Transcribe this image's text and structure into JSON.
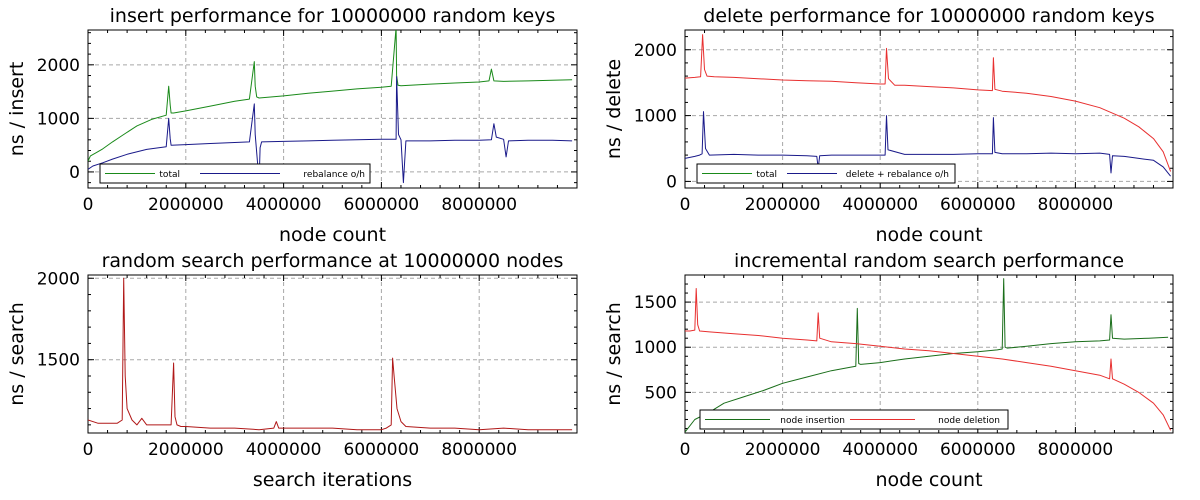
{
  "chart_data": [
    {
      "type": "line",
      "title": "insert performance for 10000000 random keys",
      "xlabel": "node count",
      "ylabel": "ns / insert",
      "xlim": [
        0,
        10000000
      ],
      "ylim": [
        -300,
        2650
      ],
      "xticks": [
        0,
        2000000,
        4000000,
        6000000,
        8000000
      ],
      "xtick_labels": [
        "0",
        "2000000",
        "4000000",
        "6000000",
        "8000000"
      ],
      "yticks": [
        0,
        1000,
        2000
      ],
      "ytick_labels": [
        "0",
        "1000",
        "2000"
      ],
      "grid": true,
      "legend_position": "bottom-left",
      "series": [
        {
          "name": "total",
          "color": "#1a8a1a",
          "x": [
            0,
            50000,
            150000,
            300000,
            500000,
            700000,
            1000000,
            1300000,
            1600000,
            1650000,
            1680000,
            1700000,
            1750000,
            2000000,
            2500000,
            3000000,
            3300000,
            3400000,
            3420000,
            3450000,
            3500000,
            4000000,
            4500000,
            5000000,
            5500000,
            6000000,
            6200000,
            6300000,
            6310000,
            6340000,
            6400000,
            7000000,
            7500000,
            8000000,
            8200000,
            8250000,
            8300000,
            8500000,
            9000000,
            9500000,
            9900000
          ],
          "y": [
            200,
            300,
            350,
            430,
            560,
            680,
            860,
            980,
            1060,
            1600,
            1250,
            1100,
            1100,
            1140,
            1230,
            1320,
            1360,
            2060,
            1600,
            1400,
            1380,
            1420,
            1470,
            1510,
            1550,
            1580,
            1600,
            2700,
            1800,
            1620,
            1610,
            1640,
            1660,
            1680,
            1700,
            1920,
            1700,
            1690,
            1700,
            1710,
            1720
          ]
        },
        {
          "name": "rebalance o/h",
          "color": "#1a1a8a",
          "x": [
            0,
            100000,
            300000,
            500000,
            800000,
            1200000,
            1600000,
            1650000,
            1680000,
            1700000,
            2000000,
            2500000,
            3000000,
            3300000,
            3400000,
            3420000,
            3500000,
            3520000,
            3550000,
            4000000,
            4500000,
            5000000,
            5500000,
            6000000,
            6300000,
            6310000,
            6350000,
            6400000,
            6450000,
            6500000,
            7000000,
            7500000,
            8000000,
            8250000,
            8300000,
            8350000,
            8500000,
            8550000,
            8600000,
            9000000,
            9500000,
            9900000
          ],
          "y": [
            50,
            110,
            170,
            240,
            330,
            420,
            470,
            1000,
            620,
            500,
            510,
            530,
            550,
            560,
            1270,
            700,
            -180,
            450,
            560,
            570,
            580,
            590,
            600,
            610,
            610,
            1780,
            700,
            600,
            -200,
            580,
            580,
            590,
            590,
            600,
            900,
            650,
            610,
            280,
            580,
            590,
            590,
            580
          ]
        }
      ]
    },
    {
      "type": "line",
      "title": "delete performance for 10000000 random keys",
      "xlabel": "node count",
      "ylabel": "ns / delete",
      "xlim": [
        0,
        10000000
      ],
      "ylim": [
        -100,
        2300
      ],
      "xticks": [
        0,
        2000000,
        4000000,
        6000000,
        8000000
      ],
      "xtick_labels": [
        "0",
        "2000000",
        "4000000",
        "6000000",
        "8000000"
      ],
      "yticks": [
        0,
        1000,
        2000
      ],
      "ytick_labels": [
        "0",
        "1000",
        "2000"
      ],
      "grid": true,
      "legend_position": "bottom-left",
      "series": [
        {
          "name": "total",
          "color": "#1a8a1a",
          "x": [],
          "y": []
        },
        {
          "name": "delete + rebalance o/h",
          "color": "#1a1a8a",
          "x": [
            0,
            200000,
            300000,
            350000,
            380000,
            420000,
            500000,
            1000000,
            1500000,
            2000000,
            2500000,
            2700000,
            2730000,
            2760000,
            3000000,
            3500000,
            4000000,
            4100000,
            4130000,
            4160000,
            4500000,
            5000000,
            5500000,
            6000000,
            6300000,
            6320000,
            6350000,
            6500000,
            7000000,
            7500000,
            8000000,
            8500000,
            8700000,
            8730000,
            8760000,
            9000000,
            9300000,
            9600000,
            9800000,
            9950000
          ],
          "y": [
            350,
            380,
            400,
            420,
            1060,
            500,
            400,
            410,
            400,
            400,
            390,
            380,
            200,
            390,
            400,
            400,
            400,
            400,
            1000,
            480,
            410,
            410,
            410,
            420,
            420,
            970,
            440,
            420,
            420,
            430,
            420,
            430,
            410,
            130,
            390,
            380,
            350,
            320,
            220,
            80
          ]
        },
        {
          "name": "",
          "color": "#e83030",
          "x": [
            0,
            200000,
            320000,
            360000,
            400000,
            450000,
            600000,
            1000000,
            1500000,
            2000000,
            2500000,
            3000000,
            3500000,
            4000000,
            4100000,
            4130000,
            4170000,
            4300000,
            4500000,
            5000000,
            5500000,
            6000000,
            6300000,
            6320000,
            6350000,
            6500000,
            7000000,
            7500000,
            8000000,
            8500000,
            9000000,
            9300000,
            9600000,
            9800000,
            9950000
          ],
          "y": [
            1570,
            1580,
            1590,
            2230,
            1700,
            1600,
            1590,
            1580,
            1560,
            1540,
            1530,
            1520,
            1500,
            1480,
            1480,
            2020,
            1560,
            1460,
            1460,
            1440,
            1420,
            1390,
            1380,
            1880,
            1400,
            1370,
            1340,
            1290,
            1220,
            1120,
            960,
            830,
            650,
            450,
            150
          ]
        }
      ]
    },
    {
      "type": "line",
      "title": "random search performance at 10000000 nodes",
      "xlabel": "search iterations",
      "ylabel": "ns / search",
      "xlim": [
        0,
        10000000
      ],
      "ylim": [
        1050,
        2020
      ],
      "xticks": [
        0,
        2000000,
        4000000,
        6000000,
        8000000
      ],
      "xtick_labels": [
        "0",
        "2000000",
        "4000000",
        "6000000",
        "8000000"
      ],
      "yticks": [
        1500,
        2000
      ],
      "ytick_labels": [
        "1500",
        "2000"
      ],
      "grid": true,
      "series": [
        {
          "name": "",
          "color": "#b01818",
          "x": [
            0,
            200000,
            400000,
            600000,
            700000,
            730000,
            760000,
            800000,
            900000,
            1000000,
            1100000,
            1200000,
            1500000,
            1700000,
            1750000,
            1780000,
            1820000,
            1900000,
            2000000,
            2500000,
            3000000,
            3500000,
            3800000,
            3850000,
            3900000,
            4000000,
            4500000,
            5000000,
            5500000,
            6000000,
            6100000,
            6200000,
            6230000,
            6260000,
            6320000,
            6400000,
            6500000,
            7000000,
            7500000,
            8000000,
            8500000,
            9000000,
            9500000,
            9900000
          ],
          "y": [
            1130,
            1110,
            1110,
            1110,
            1130,
            2000,
            1400,
            1200,
            1130,
            1100,
            1140,
            1100,
            1100,
            1100,
            1480,
            1150,
            1100,
            1090,
            1090,
            1080,
            1080,
            1070,
            1080,
            1120,
            1080,
            1080,
            1080,
            1080,
            1070,
            1070,
            1080,
            1100,
            1510,
            1400,
            1200,
            1120,
            1090,
            1080,
            1080,
            1070,
            1080,
            1070,
            1070,
            1070
          ]
        }
      ]
    },
    {
      "type": "line",
      "title": "incremental random search performance",
      "xlabel": "node count",
      "ylabel": "ns / search",
      "xlim": [
        0,
        10000000
      ],
      "ylim": [
        50,
        1800
      ],
      "xticks": [
        0,
        2000000,
        4000000,
        6000000,
        8000000
      ],
      "xtick_labels": [
        "0",
        "2000000",
        "4000000",
        "6000000",
        "8000000"
      ],
      "yticks": [
        500,
        1000,
        1500
      ],
      "ytick_labels": [
        "500",
        "1000",
        "1500"
      ],
      "grid": true,
      "legend_position": "bottom-left",
      "series": [
        {
          "name": "node insertion",
          "color": "#1a6e1a",
          "x": [
            0,
            200000,
            500000,
            800000,
            1200000,
            1600000,
            1800000,
            2000000,
            2500000,
            3000000,
            3400000,
            3500000,
            3530000,
            3560000,
            3600000,
            4000000,
            4500000,
            5000000,
            5500000,
            6000000,
            6400000,
            6500000,
            6530000,
            6560000,
            6600000,
            7000000,
            7500000,
            8000000,
            8500000,
            8700000,
            8730000,
            8760000,
            9000000,
            9500000,
            9900000
          ],
          "y": [
            60,
            200,
            280,
            380,
            450,
            520,
            560,
            600,
            670,
            740,
            780,
            790,
            1430,
            820,
            810,
            830,
            870,
            900,
            930,
            950,
            970,
            980,
            1760,
            1000,
            990,
            1010,
            1040,
            1060,
            1070,
            1080,
            1360,
            1100,
            1090,
            1100,
            1110
          ]
        },
        {
          "name": "node deletion",
          "color": "#e83030",
          "x": [
            0,
            100000,
            200000,
            230000,
            260000,
            300000,
            500000,
            1000000,
            1500000,
            2000000,
            2500000,
            2700000,
            2730000,
            2760000,
            3000000,
            3500000,
            4000000,
            4500000,
            5000000,
            5500000,
            6000000,
            6500000,
            7000000,
            7500000,
            8000000,
            8500000,
            8700000,
            8730000,
            8760000,
            9000000,
            9300000,
            9600000,
            9800000,
            9950000
          ],
          "y": [
            1180,
            1180,
            1190,
            1650,
            1250,
            1180,
            1170,
            1150,
            1130,
            1100,
            1080,
            1070,
            1380,
            1100,
            1060,
            1040,
            1010,
            980,
            960,
            930,
            900,
            870,
            830,
            790,
            740,
            690,
            650,
            870,
            650,
            590,
            500,
            380,
            250,
            80
          ]
        }
      ]
    }
  ]
}
